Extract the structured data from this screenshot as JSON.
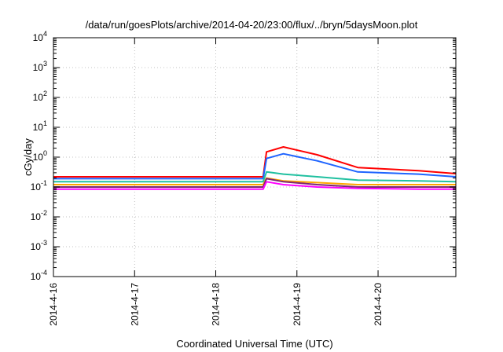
{
  "chart_data": {
    "type": "line",
    "title": "/data/run/goesPlots/archive/2014-04-20/23:00/flux/../bryn/5daysMoon.plot",
    "xlabel": "Coordinated Universal Time (UTC)",
    "ylabel": "cGy/day",
    "yscale": "log",
    "ylim": [
      0.0001,
      10000
    ],
    "y_ticks": [
      {
        "value": 0.0001,
        "base": "10",
        "exp": "-4"
      },
      {
        "value": 0.001,
        "base": "10",
        "exp": "-3"
      },
      {
        "value": 0.01,
        "base": "10",
        "exp": "-2"
      },
      {
        "value": 0.1,
        "base": "10",
        "exp": "-1"
      },
      {
        "value": 1,
        "base": "10",
        "exp": "0"
      },
      {
        "value": 10,
        "base": "10",
        "exp": "1"
      },
      {
        "value": 100,
        "base": "10",
        "exp": "2"
      },
      {
        "value": 1000,
        "base": "10",
        "exp": "3"
      },
      {
        "value": 10000,
        "base": "10",
        "exp": "4"
      }
    ],
    "xlim": [
      "2014-04-16T00:00",
      "2014-04-20T23:00"
    ],
    "x_ticks": [
      "2014-4-16",
      "2014-4-17",
      "2014-4-18",
      "2014-4-19",
      "2014-4-20"
    ],
    "x_tick_dates": [
      "2014-04-16T00:00",
      "2014-04-17T00:00",
      "2014-04-18T00:00",
      "2014-04-19T00:00",
      "2014-04-20T00:00"
    ],
    "grid": true,
    "series": [
      {
        "color": "#ff0000",
        "x": [
          "2014-04-16T00:00",
          "2014-04-17T00:00",
          "2014-04-18T00:00",
          "2014-04-18T14:00",
          "2014-04-18T15:00",
          "2014-04-18T20:00",
          "2014-04-19T06:00",
          "2014-04-19T18:00",
          "2014-04-20T12:00",
          "2014-04-20T23:00"
        ],
        "values": [
          0.22,
          0.22,
          0.22,
          0.22,
          1.5,
          2.2,
          1.2,
          0.45,
          0.35,
          0.28
        ]
      },
      {
        "color": "#1e64ff",
        "x": [
          "2014-04-16T00:00",
          "2014-04-17T00:00",
          "2014-04-18T00:00",
          "2014-04-18T14:00",
          "2014-04-18T15:00",
          "2014-04-18T20:00",
          "2014-04-19T06:00",
          "2014-04-19T18:00",
          "2014-04-20T12:00",
          "2014-04-20T23:00"
        ],
        "values": [
          0.19,
          0.19,
          0.19,
          0.19,
          0.9,
          1.3,
          0.75,
          0.32,
          0.27,
          0.22
        ]
      },
      {
        "color": "#20c0a0",
        "x": [
          "2014-04-16T00:00",
          "2014-04-17T00:00",
          "2014-04-18T00:00",
          "2014-04-18T14:00",
          "2014-04-18T15:00",
          "2014-04-18T20:00",
          "2014-04-19T06:00",
          "2014-04-19T18:00",
          "2014-04-20T12:00",
          "2014-04-20T23:00"
        ],
        "values": [
          0.15,
          0.15,
          0.15,
          0.15,
          0.32,
          0.27,
          0.22,
          0.17,
          0.16,
          0.15
        ]
      },
      {
        "color": "#ffa500",
        "x": [
          "2014-04-16T00:00",
          "2014-04-17T00:00",
          "2014-04-18T00:00",
          "2014-04-18T14:00",
          "2014-04-18T15:00",
          "2014-04-18T20:00",
          "2014-04-19T06:00",
          "2014-04-19T18:00",
          "2014-04-20T12:00",
          "2014-04-20T23:00"
        ],
        "values": [
          0.12,
          0.12,
          0.12,
          0.12,
          0.2,
          0.16,
          0.14,
          0.12,
          0.12,
          0.12
        ]
      },
      {
        "color": "#7a2870",
        "x": [
          "2014-04-16T00:00",
          "2014-04-17T00:00",
          "2014-04-18T00:00",
          "2014-04-18T14:00",
          "2014-04-18T15:00",
          "2014-04-18T20:00",
          "2014-04-19T06:00",
          "2014-04-19T18:00",
          "2014-04-20T12:00",
          "2014-04-20T23:00"
        ],
        "values": [
          0.1,
          0.1,
          0.1,
          0.1,
          0.19,
          0.15,
          0.12,
          0.1,
          0.1,
          0.1
        ]
      },
      {
        "color": "#ff00ff",
        "x": [
          "2014-04-16T00:00",
          "2014-04-17T00:00",
          "2014-04-18T00:00",
          "2014-04-18T14:00",
          "2014-04-18T15:00",
          "2014-04-18T20:00",
          "2014-04-19T06:00",
          "2014-04-19T18:00",
          "2014-04-20T12:00",
          "2014-04-20T23:00"
        ],
        "values": [
          0.085,
          0.085,
          0.085,
          0.085,
          0.15,
          0.12,
          0.1,
          0.09,
          0.085,
          0.085
        ]
      }
    ]
  }
}
